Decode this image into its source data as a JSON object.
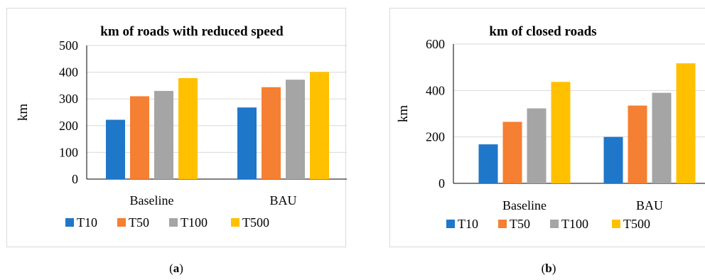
{
  "colors": {
    "T10": "#1f77c9",
    "T50": "#f57f32",
    "T100": "#a5a5a5",
    "T500": "#ffc000",
    "grid": "#d9d9d9",
    "axis": "#000000"
  },
  "captions": {
    "a": "a",
    "b": "b"
  },
  "chart_data": [
    {
      "type": "bar",
      "title": "km of roads with reduced speed",
      "xlabel": "",
      "ylabel": "km",
      "categories": [
        "Baseline",
        "BAU"
      ],
      "ylim": [
        0,
        500
      ],
      "yticks": [
        0,
        100,
        200,
        300,
        400,
        500
      ],
      "grid": true,
      "legend": "bottom",
      "series": [
        {
          "name": "T10",
          "values": [
            222,
            268
          ]
        },
        {
          "name": "T50",
          "values": [
            310,
            344
          ]
        },
        {
          "name": "T100",
          "values": [
            330,
            372
          ]
        },
        {
          "name": "T500",
          "values": [
            378,
            401
          ]
        }
      ]
    },
    {
      "type": "bar",
      "title": "km of closed roads",
      "xlabel": "",
      "ylabel": "km",
      "categories": [
        "Baseline",
        "BAU"
      ],
      "ylim": [
        0,
        600
      ],
      "yticks": [
        0,
        200,
        400,
        600
      ],
      "grid": true,
      "legend": "bottom",
      "series": [
        {
          "name": "T10",
          "values": [
            168,
            200
          ]
        },
        {
          "name": "T50",
          "values": [
            265,
            335
          ]
        },
        {
          "name": "T100",
          "values": [
            323,
            390
          ]
        },
        {
          "name": "T500",
          "values": [
            437,
            517
          ]
        }
      ]
    }
  ]
}
